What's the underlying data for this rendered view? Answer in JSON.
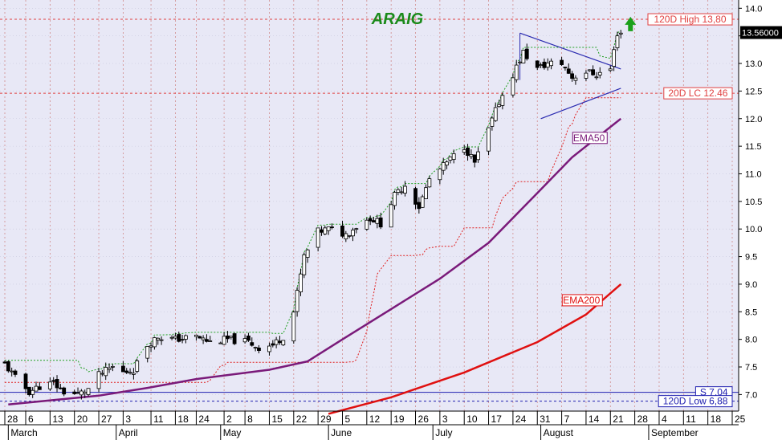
{
  "chart_data": {
    "type": "candlestick",
    "title": "ARAIG",
    "colors": {
      "background": "#e8e8f6",
      "grid": "#d08a8a",
      "candle_up": "#ffffff",
      "candle_down": "#000000",
      "ema50": "#7a1a7a",
      "ema200": "#e01010",
      "resistance": "#e04040",
      "support": "#2020b0",
      "trailing_stop": "#e02020",
      "channel_high": "#20a020",
      "trend": "#2a2ab0",
      "arrow": "#1aa01a",
      "last_price_bg": "#000000"
    },
    "y_axis": {
      "range": [
        6.7,
        14.15
      ],
      "ticks": [
        "7.0",
        "7.5",
        "8.0",
        "8.5",
        "9.0",
        "9.5",
        "10.0",
        "10.5",
        "11.0",
        "11.5",
        "12.0",
        "12.5",
        "13.0",
        "13.5",
        "14.0"
      ]
    },
    "x_axis": {
      "range": [
        "2023-02-28",
        "2023-09-25"
      ],
      "ticks": [
        {
          "date": "2023-02-28",
          "label": "28"
        },
        {
          "date": "2023-03-06",
          "label": "6"
        },
        {
          "date": "2023-03-13",
          "label": "13"
        },
        {
          "date": "2023-03-20",
          "label": "20"
        },
        {
          "date": "2023-03-27",
          "label": "27"
        },
        {
          "date": "2023-04-03",
          "label": "3"
        },
        {
          "date": "2023-04-11",
          "label": "11"
        },
        {
          "date": "2023-04-18",
          "label": "18"
        },
        {
          "date": "2023-04-24",
          "label": "24"
        },
        {
          "date": "2023-05-02",
          "label": "2"
        },
        {
          "date": "2023-05-08",
          "label": "8"
        },
        {
          "date": "2023-05-15",
          "label": "15"
        },
        {
          "date": "2023-05-22",
          "label": "22"
        },
        {
          "date": "2023-05-29",
          "label": "29"
        },
        {
          "date": "2023-06-05",
          "label": "5"
        },
        {
          "date": "2023-06-12",
          "label": "12"
        },
        {
          "date": "2023-06-19",
          "label": "19"
        },
        {
          "date": "2023-06-26",
          "label": "26"
        },
        {
          "date": "2023-07-03",
          "label": "3"
        },
        {
          "date": "2023-07-10",
          "label": "10"
        },
        {
          "date": "2023-07-17",
          "label": "17"
        },
        {
          "date": "2023-07-24",
          "label": "24"
        },
        {
          "date": "2023-07-31",
          "label": "31"
        },
        {
          "date": "2023-08-07",
          "label": "7"
        },
        {
          "date": "2023-08-14",
          "label": "14"
        },
        {
          "date": "2023-08-21",
          "label": "21"
        },
        {
          "date": "2023-08-28",
          "label": "28"
        },
        {
          "date": "2023-09-04",
          "label": "4"
        },
        {
          "date": "2023-09-11",
          "label": "11"
        },
        {
          "date": "2023-09-18",
          "label": "18"
        },
        {
          "date": "2023-09-25",
          "label": "25"
        }
      ],
      "months": [
        {
          "date": "2023-03-01",
          "label": "March"
        },
        {
          "date": "2023-04-01",
          "label": "April"
        },
        {
          "date": "2023-05-01",
          "label": "May"
        },
        {
          "date": "2023-06-01",
          "label": "June"
        },
        {
          "date": "2023-07-01",
          "label": "July"
        },
        {
          "date": "2023-08-01",
          "label": "August"
        },
        {
          "date": "2023-09-01",
          "label": "September"
        }
      ]
    },
    "ohlc_anchors": [
      [
        "2023-02-28",
        7.55
      ],
      [
        "2023-03-03",
        7.3
      ],
      [
        "2023-03-07",
        7.05
      ],
      [
        "2023-03-10",
        7.15
      ],
      [
        "2023-03-14",
        7.2
      ],
      [
        "2023-03-17",
        7.05
      ],
      [
        "2023-03-21",
        7.0
      ],
      [
        "2023-03-24",
        7.1
      ],
      [
        "2023-03-27",
        7.35
      ],
      [
        "2023-03-31",
        7.5
      ],
      [
        "2023-04-03",
        7.4
      ],
      [
        "2023-04-06",
        7.45
      ],
      [
        "2023-04-10",
        7.9
      ],
      [
        "2023-04-13",
        8.05
      ],
      [
        "2023-04-18",
        8.0
      ],
      [
        "2023-04-24",
        8.05
      ],
      [
        "2023-04-28",
        7.95
      ],
      [
        "2023-05-03",
        8.0
      ],
      [
        "2023-05-09",
        7.95
      ],
      [
        "2023-05-12",
        7.85
      ],
      [
        "2023-05-16",
        7.9
      ],
      [
        "2023-05-19",
        8.05
      ],
      [
        "2023-05-22",
        8.5
      ],
      [
        "2023-05-25",
        9.5
      ],
      [
        "2023-05-29",
        9.95
      ],
      [
        "2023-06-01",
        10.0
      ],
      [
        "2023-06-06",
        9.9
      ],
      [
        "2023-06-09",
        10.05
      ],
      [
        "2023-06-13",
        10.2
      ],
      [
        "2023-06-16",
        10.1
      ],
      [
        "2023-06-20",
        10.6
      ],
      [
        "2023-06-23",
        10.8
      ],
      [
        "2023-06-27",
        10.4
      ],
      [
        "2023-06-30",
        10.9
      ],
      [
        "2023-07-05",
        11.2
      ],
      [
        "2023-07-10",
        11.5
      ],
      [
        "2023-07-13",
        11.2
      ],
      [
        "2023-07-17",
        11.8
      ],
      [
        "2023-07-20",
        12.3
      ],
      [
        "2023-07-24",
        12.8
      ],
      [
        "2023-07-27",
        13.2
      ],
      [
        "2023-07-31",
        12.9
      ],
      [
        "2023-08-03",
        13.0
      ],
      [
        "2023-08-07",
        13.0
      ],
      [
        "2023-08-10",
        12.75
      ],
      [
        "2023-08-14",
        12.85
      ],
      [
        "2023-08-17",
        12.8
      ],
      [
        "2023-08-21",
        12.9
      ],
      [
        "2023-08-23",
        13.55
      ],
      [
        "2023-08-24",
        13.56
      ]
    ],
    "ema50": [
      [
        "2023-03-01",
        6.82
      ],
      [
        "2023-03-27",
        6.98
      ],
      [
        "2023-04-10",
        7.12
      ],
      [
        "2023-04-24",
        7.28
      ],
      [
        "2023-05-15",
        7.45
      ],
      [
        "2023-05-26",
        7.6
      ],
      [
        "2023-06-05",
        8.0
      ],
      [
        "2023-06-19",
        8.55
      ],
      [
        "2023-07-03",
        9.1
      ],
      [
        "2023-07-17",
        9.75
      ],
      [
        "2023-07-31",
        10.65
      ],
      [
        "2023-08-10",
        11.3
      ],
      [
        "2023-08-24",
        12.0
      ]
    ],
    "ema200": [
      [
        "2023-06-01",
        6.65
      ],
      [
        "2023-06-19",
        6.95
      ],
      [
        "2023-07-10",
        7.4
      ],
      [
        "2023-07-31",
        7.95
      ],
      [
        "2023-08-14",
        8.45
      ],
      [
        "2023-08-24",
        9.0
      ]
    ],
    "levels": [
      {
        "label": "120D High 13,80",
        "value": 13.8,
        "kind": "resistance"
      },
      {
        "label": "20D LC 12.46",
        "value": 12.46,
        "kind": "resistance"
      },
      {
        "label": "S 7,04",
        "value": 7.04,
        "kind": "support"
      },
      {
        "label": "120D Low 6,88",
        "value": 6.88,
        "kind": "support"
      }
    ],
    "series_labels": [
      {
        "label": "EMA50",
        "series": "ema50"
      },
      {
        "label": "EMA200",
        "series": "ema200"
      }
    ],
    "last_price": "13.56000",
    "triangle": {
      "upper": [
        [
          "2023-07-26",
          13.55
        ],
        [
          "2023-08-24",
          12.9
        ]
      ],
      "lower": [
        [
          "2023-08-01",
          12.0
        ],
        [
          "2023-08-24",
          12.55
        ]
      ]
    }
  }
}
